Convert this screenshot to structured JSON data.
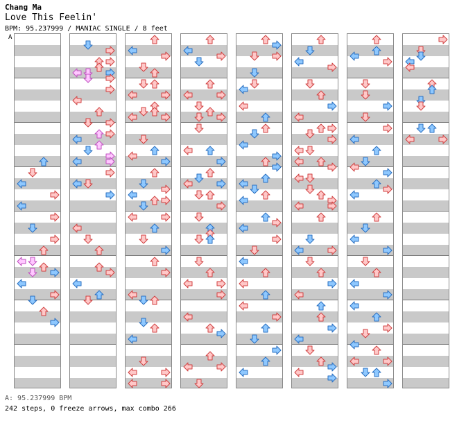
{
  "header": {
    "artist": "Chang Ma",
    "title": "Love This Feelin'",
    "info": "BPM: 95.237999 / MANIAC SINGLE / 8 feet",
    "bpm_marker": "A"
  },
  "footer": {
    "bpm_line": "A: 95.237999 BPM",
    "stats": "242 steps, 0 freeze arrows, max combo 266"
  },
  "colors": {
    "red_fill": "#ffc8c8",
    "red_stroke": "#d04040",
    "blue_fill": "#8ec8ff",
    "blue_stroke": "#2a6fc0",
    "pink_fill": "#ffc8ff",
    "pink_stroke": "#c050c0"
  },
  "icons": [
    "left-arrow-icon",
    "down-arrow-icon",
    "up-arrow-icon",
    "right-arrow-icon"
  ],
  "columns": [
    [
      [
        2,
        22,
        "blue"
      ],
      [
        1,
        24,
        "red"
      ],
      [
        0,
        26,
        "blue"
      ],
      [
        3,
        28,
        "red"
      ],
      [
        0,
        30,
        "blue"
      ],
      [
        3,
        32,
        "red"
      ],
      [
        1,
        34,
        "blue"
      ],
      [
        3,
        36,
        "red"
      ],
      [
        2,
        38,
        "red"
      ],
      [
        0,
        40,
        "pink"
      ],
      [
        1,
        40,
        "pink"
      ],
      [
        2,
        41,
        "red"
      ],
      [
        1,
        42,
        "pink"
      ],
      [
        3,
        42,
        "blue"
      ],
      [
        0,
        44,
        "blue"
      ],
      [
        3,
        46,
        "red"
      ],
      [
        1,
        47,
        "blue"
      ],
      [
        2,
        49,
        "red"
      ],
      [
        3,
        51,
        "blue"
      ]
    ],
    [
      [
        1,
        1,
        "blue"
      ],
      [
        3,
        2,
        "red"
      ],
      [
        2,
        4,
        "red"
      ],
      [
        3,
        4,
        "red"
      ],
      [
        2,
        5,
        "red"
      ],
      [
        0,
        6,
        "pink"
      ],
      [
        1,
        6,
        "pink"
      ],
      [
        3,
        6,
        "blue"
      ],
      [
        1,
        7,
        "pink"
      ],
      [
        3,
        7,
        "red"
      ],
      [
        3,
        9,
        "red"
      ],
      [
        0,
        11,
        "red"
      ],
      [
        2,
        13,
        "red"
      ],
      [
        1,
        15,
        "red"
      ],
      [
        3,
        15,
        "red"
      ],
      [
        2,
        17,
        "pink"
      ],
      [
        3,
        17,
        "red"
      ],
      [
        0,
        18,
        "blue"
      ],
      [
        2,
        19,
        "pink"
      ],
      [
        1,
        20,
        "blue"
      ],
      [
        3,
        21,
        "pink"
      ],
      [
        0,
        22,
        "blue"
      ],
      [
        3,
        22,
        "pink"
      ],
      [
        3,
        24,
        "red"
      ],
      [
        0,
        26,
        "blue"
      ],
      [
        1,
        26,
        "red"
      ],
      [
        3,
        28,
        "blue"
      ],
      [
        0,
        34,
        "red"
      ],
      [
        1,
        36,
        "red"
      ],
      [
        2,
        38,
        "red"
      ],
      [
        2,
        41,
        "red"
      ],
      [
        3,
        42,
        "red"
      ],
      [
        0,
        44,
        "blue"
      ],
      [
        2,
        46,
        "blue"
      ],
      [
        1,
        47,
        "red"
      ]
    ],
    [
      [
        2,
        0,
        "red"
      ],
      [
        0,
        2,
        "blue"
      ],
      [
        3,
        3,
        "red"
      ],
      [
        1,
        5,
        "red"
      ],
      [
        2,
        6,
        "red"
      ],
      [
        1,
        8,
        "red"
      ],
      [
        2,
        8,
        "red"
      ],
      [
        0,
        10,
        "red"
      ],
      [
        3,
        10,
        "red"
      ],
      [
        2,
        12,
        "red"
      ],
      [
        1,
        13,
        "red"
      ],
      [
        2,
        13,
        "red"
      ],
      [
        0,
        14,
        "red"
      ],
      [
        3,
        14,
        "red"
      ],
      [
        1,
        18,
        "red"
      ],
      [
        2,
        20,
        "blue"
      ],
      [
        0,
        21,
        "red"
      ],
      [
        3,
        22,
        "blue"
      ],
      [
        2,
        24,
        "red"
      ],
      [
        1,
        26,
        "blue"
      ],
      [
        3,
        27,
        "red"
      ],
      [
        0,
        28,
        "blue"
      ],
      [
        2,
        29,
        "red"
      ],
      [
        3,
        29,
        "red"
      ],
      [
        1,
        30,
        "blue"
      ],
      [
        0,
        32,
        "red"
      ],
      [
        3,
        32,
        "red"
      ],
      [
        2,
        34,
        "blue"
      ],
      [
        1,
        36,
        "red"
      ],
      [
        3,
        38,
        "blue"
      ],
      [
        2,
        40,
        "red"
      ],
      [
        3,
        42,
        "red"
      ],
      [
        0,
        46,
        "red"
      ],
      [
        1,
        47,
        "blue"
      ],
      [
        2,
        47,
        "red"
      ],
      [
        1,
        51,
        "blue"
      ],
      [
        2,
        52,
        "red"
      ],
      [
        0,
        54,
        "blue"
      ],
      [
        1,
        58,
        "red"
      ],
      [
        0,
        60,
        "red"
      ],
      [
        3,
        60,
        "red"
      ],
      [
        0,
        62,
        "red"
      ],
      [
        3,
        62,
        "red"
      ]
    ],
    [
      [
        2,
        0,
        "red"
      ],
      [
        0,
        2,
        "blue"
      ],
      [
        3,
        3,
        "red"
      ],
      [
        1,
        4,
        "blue"
      ],
      [
        2,
        8,
        "red"
      ],
      [
        0,
        10,
        "red"
      ],
      [
        3,
        10,
        "red"
      ],
      [
        1,
        12,
        "red"
      ],
      [
        2,
        13,
        "red"
      ],
      [
        1,
        14,
        "red"
      ],
      [
        3,
        14,
        "red"
      ],
      [
        1,
        16,
        "red"
      ],
      [
        0,
        20,
        "red"
      ],
      [
        2,
        20,
        "blue"
      ],
      [
        3,
        22,
        "blue"
      ],
      [
        2,
        24,
        "red"
      ],
      [
        1,
        25,
        "blue"
      ],
      [
        0,
        26,
        "red"
      ],
      [
        3,
        26,
        "blue"
      ],
      [
        1,
        28,
        "red"
      ],
      [
        2,
        28,
        "red"
      ],
      [
        3,
        30,
        "red"
      ],
      [
        1,
        32,
        "red"
      ],
      [
        2,
        34,
        "blue"
      ],
      [
        2,
        35,
        "red"
      ],
      [
        1,
        36,
        "red"
      ],
      [
        2,
        36,
        "blue"
      ],
      [
        1,
        40,
        "red"
      ],
      [
        2,
        42,
        "red"
      ],
      [
        0,
        44,
        "red"
      ],
      [
        3,
        44,
        "red"
      ],
      [
        3,
        46,
        "red"
      ],
      [
        0,
        50,
        "red"
      ],
      [
        2,
        52,
        "red"
      ],
      [
        3,
        53,
        "blue"
      ],
      [
        2,
        57,
        "red"
      ],
      [
        0,
        59,
        "red"
      ],
      [
        3,
        59,
        "red"
      ],
      [
        1,
        62,
        "red"
      ]
    ],
    [
      [
        2,
        0,
        "red"
      ],
      [
        3,
        1,
        "blue"
      ],
      [
        1,
        3,
        "red"
      ],
      [
        3,
        3,
        "red"
      ],
      [
        1,
        6,
        "blue"
      ],
      [
        0,
        9,
        "blue"
      ],
      [
        1,
        8,
        "red"
      ],
      [
        0,
        12,
        "red"
      ],
      [
        2,
        14,
        "blue"
      ],
      [
        2,
        16,
        "red"
      ],
      [
        1,
        17,
        "blue"
      ],
      [
        0,
        19,
        "blue"
      ],
      [
        3,
        21,
        "blue"
      ],
      [
        2,
        22,
        "red"
      ],
      [
        3,
        23,
        "blue"
      ],
      [
        2,
        25,
        "blue"
      ],
      [
        1,
        27,
        "blue"
      ],
      [
        0,
        26,
        "blue"
      ],
      [
        2,
        28,
        "red"
      ],
      [
        0,
        29,
        "blue"
      ],
      [
        2,
        32,
        "blue"
      ],
      [
        3,
        33,
        "red"
      ],
      [
        0,
        34,
        "blue"
      ],
      [
        3,
        36,
        "red"
      ],
      [
        1,
        38,
        "red"
      ],
      [
        0,
        40,
        "blue"
      ],
      [
        2,
        42,
        "red"
      ],
      [
        0,
        44,
        "red"
      ],
      [
        2,
        46,
        "blue"
      ],
      [
        0,
        48,
        "red"
      ],
      [
        3,
        50,
        "red"
      ],
      [
        2,
        52,
        "blue"
      ],
      [
        1,
        54,
        "blue"
      ],
      [
        3,
        56,
        "blue"
      ],
      [
        2,
        58,
        "blue"
      ],
      [
        0,
        60,
        "blue"
      ]
    ],
    [
      [
        2,
        0,
        "red"
      ],
      [
        1,
        2,
        "blue"
      ],
      [
        0,
        4,
        "blue"
      ],
      [
        3,
        5,
        "red"
      ],
      [
        1,
        8,
        "red"
      ],
      [
        2,
        10,
        "red"
      ],
      [
        3,
        12,
        "blue"
      ],
      [
        0,
        14,
        "red"
      ],
      [
        2,
        16,
        "red"
      ],
      [
        3,
        16,
        "red"
      ],
      [
        1,
        17,
        "red"
      ],
      [
        3,
        18,
        "red"
      ],
      [
        0,
        20,
        "red"
      ],
      [
        1,
        20,
        "red"
      ],
      [
        0,
        22,
        "red"
      ],
      [
        2,
        22,
        "red"
      ],
      [
        3,
        23,
        "red"
      ],
      [
        0,
        25,
        "red"
      ],
      [
        1,
        25,
        "red"
      ],
      [
        1,
        27,
        "red"
      ],
      [
        2,
        28,
        "red"
      ],
      [
        3,
        29,
        "red"
      ],
      [
        0,
        30,
        "red"
      ],
      [
        3,
        30,
        "red"
      ],
      [
        2,
        32,
        "red"
      ],
      [
        1,
        36,
        "blue"
      ],
      [
        0,
        38,
        "blue"
      ],
      [
        3,
        38,
        "red"
      ],
      [
        1,
        40,
        "red"
      ],
      [
        2,
        42,
        "red"
      ],
      [
        3,
        44,
        "blue"
      ],
      [
        0,
        46,
        "red"
      ],
      [
        2,
        48,
        "blue"
      ],
      [
        2,
        50,
        "red"
      ],
      [
        3,
        52,
        "blue"
      ],
      [
        0,
        54,
        "blue"
      ],
      [
        1,
        56,
        "red"
      ],
      [
        2,
        58,
        "red"
      ],
      [
        3,
        59,
        "blue"
      ],
      [
        0,
        60,
        "red"
      ],
      [
        3,
        61,
        "blue"
      ]
    ],
    [
      [
        2,
        0,
        "red"
      ],
      [
        2,
        2,
        "blue"
      ],
      [
        0,
        3,
        "blue"
      ],
      [
        3,
        4,
        "red"
      ],
      [
        1,
        8,
        "red"
      ],
      [
        1,
        10,
        "red"
      ],
      [
        3,
        12,
        "blue"
      ],
      [
        1,
        14,
        "red"
      ],
      [
        3,
        16,
        "red"
      ],
      [
        0,
        18,
        "blue"
      ],
      [
        2,
        20,
        "blue"
      ],
      [
        1,
        22,
        "blue"
      ],
      [
        0,
        23,
        "red"
      ],
      [
        3,
        24,
        "blue"
      ],
      [
        2,
        26,
        "blue"
      ],
      [
        3,
        27,
        "red"
      ],
      [
        0,
        28,
        "blue"
      ],
      [
        2,
        32,
        "red"
      ],
      [
        1,
        34,
        "blue"
      ],
      [
        0,
        36,
        "blue"
      ],
      [
        3,
        38,
        "blue"
      ],
      [
        1,
        40,
        "red"
      ],
      [
        2,
        42,
        "red"
      ],
      [
        0,
        44,
        "blue"
      ],
      [
        3,
        46,
        "blue"
      ],
      [
        0,
        48,
        "blue"
      ],
      [
        2,
        50,
        "blue"
      ],
      [
        3,
        52,
        "red"
      ],
      [
        1,
        53,
        "red"
      ],
      [
        0,
        55,
        "blue"
      ],
      [
        2,
        56,
        "red"
      ],
      [
        0,
        58,
        "red"
      ],
      [
        3,
        58,
        "red"
      ],
      [
        1,
        60,
        "blue"
      ],
      [
        2,
        60,
        "blue"
      ],
      [
        3,
        62,
        "blue"
      ]
    ],
    [
      [
        3,
        0,
        "red"
      ],
      [
        1,
        2,
        "red"
      ],
      [
        1,
        3,
        "blue"
      ],
      [
        0,
        4,
        "blue"
      ],
      [
        0,
        5,
        "red"
      ],
      [
        2,
        8,
        "red"
      ],
      [
        2,
        9,
        "blue"
      ],
      [
        1,
        11,
        "blue"
      ],
      [
        1,
        12,
        "red"
      ],
      [
        1,
        16,
        "blue"
      ],
      [
        2,
        16,
        "blue"
      ],
      [
        0,
        18,
        "red"
      ],
      [
        3,
        18,
        "red"
      ]
    ]
  ]
}
